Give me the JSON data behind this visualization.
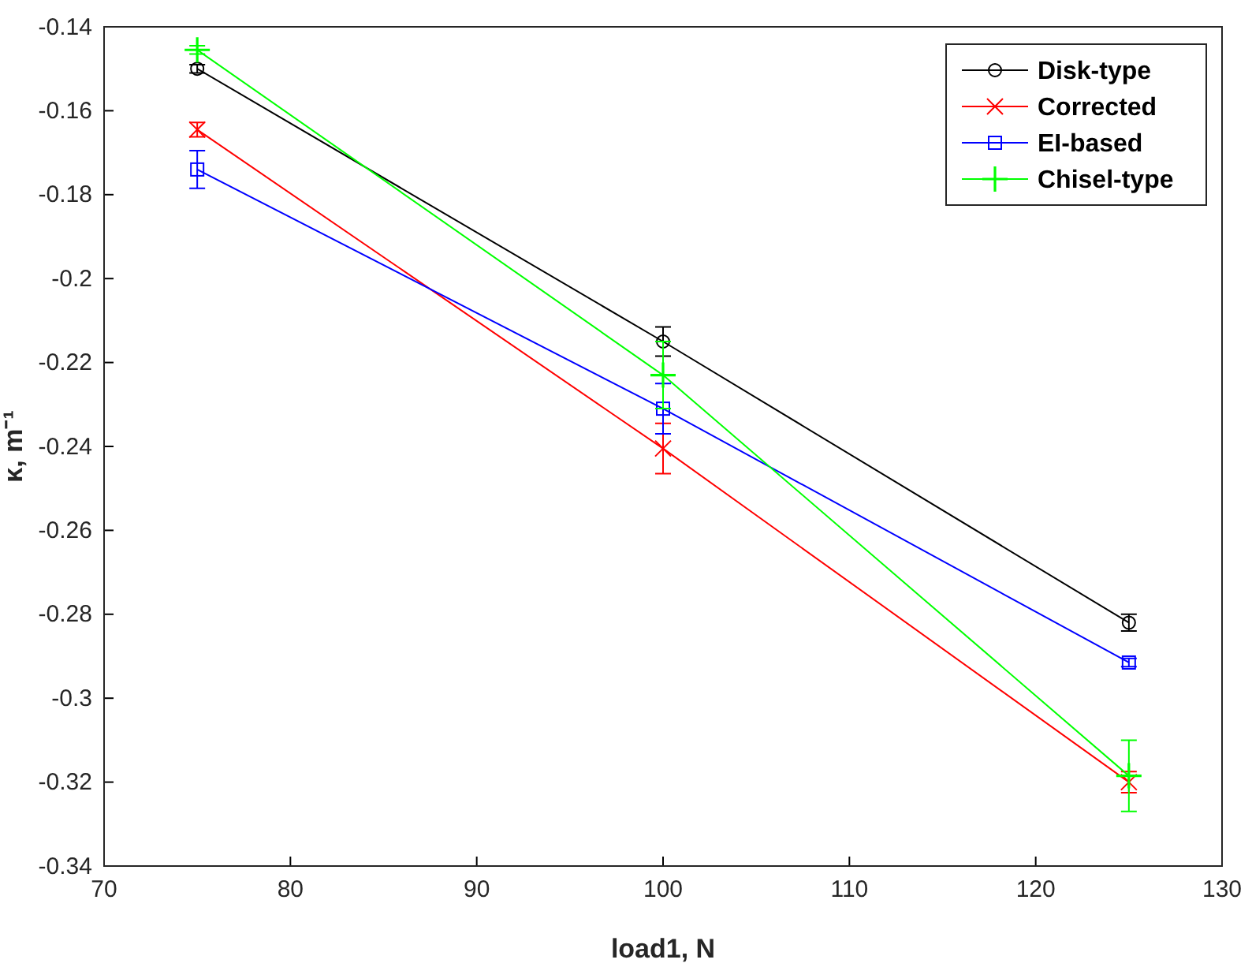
{
  "chart_data": {
    "type": "line",
    "xlabel": "load1, N",
    "ylabel": "κ, m⁻¹",
    "x": [
      75,
      100,
      125
    ],
    "xlim": [
      70,
      130
    ],
    "xticks": [
      70,
      80,
      90,
      100,
      110,
      120,
      130
    ],
    "ylim": [
      -0.34,
      -0.14
    ],
    "yticks": [
      -0.34,
      -0.32,
      -0.3,
      -0.28,
      -0.26,
      -0.24,
      -0.22,
      -0.2,
      -0.18,
      -0.16,
      -0.14
    ],
    "legend": "top right",
    "series": [
      {
        "name": "Disk-type",
        "color": "#000000",
        "marker": "circle",
        "values": [
          -0.15,
          -0.215,
          -0.282
        ],
        "errors": [
          0.001,
          0.0035,
          0.002
        ]
      },
      {
        "name": "Corrected",
        "color": "#ff0000",
        "marker": "cross",
        "values": [
          -0.1645,
          -0.2405,
          -0.32
        ],
        "errors": [
          0.0017,
          0.006,
          0.0025
        ]
      },
      {
        "name": "EI-based",
        "color": "#0000ff",
        "marker": "square",
        "values": [
          -0.174,
          -0.231,
          -0.2915
        ],
        "errors": [
          0.0045,
          0.006,
          0.001
        ]
      },
      {
        "name": "Chisel-type",
        "color": "#00ff00",
        "marker": "plus",
        "values": [
          -0.1455,
          -0.223,
          -0.3185
        ],
        "errors": [
          0.001,
          0.008,
          0.0085
        ]
      }
    ]
  }
}
